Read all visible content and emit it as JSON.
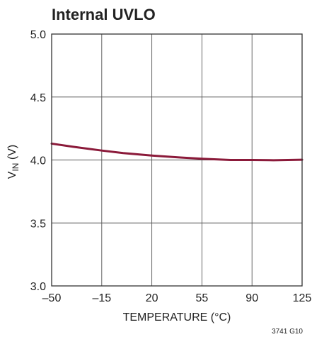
{
  "chart_data": {
    "type": "line",
    "title": "Internal UVLO",
    "xlabel": "TEMPERATURE (°C)",
    "ylabel": {
      "main": "V",
      "sub": "IN",
      "unit": " (V)"
    },
    "xlim": [
      -50,
      125
    ],
    "ylim": [
      3.0,
      5.0
    ],
    "x_ticks": [
      -50,
      -15,
      20,
      55,
      90,
      125
    ],
    "x_tick_labels": [
      "–50",
      "–15",
      "20",
      "55",
      "90",
      "125"
    ],
    "y_ticks": [
      3.0,
      3.5,
      4.0,
      4.5,
      5.0
    ],
    "y_tick_labels": [
      "3.0",
      "3.5",
      "4.0",
      "4.5",
      "5.0"
    ],
    "grid": true,
    "series": [
      {
        "color": "#8b1a3a",
        "x": [
          -50,
          -35,
          -15,
          0,
          20,
          40,
          55,
          75,
          90,
          105,
          125
        ],
        "y": [
          4.13,
          4.105,
          4.075,
          4.055,
          4.035,
          4.02,
          4.01,
          4.0,
          4.0,
          3.998,
          4.002
        ]
      }
    ]
  },
  "figure_code": "3741 G10"
}
